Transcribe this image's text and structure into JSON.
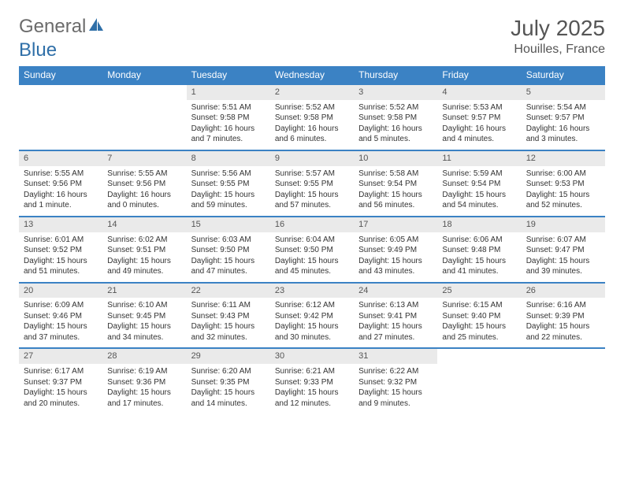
{
  "logo": {
    "text1": "General",
    "text2": "Blue",
    "color1": "#6b6b6b",
    "color2": "#2f6fa8"
  },
  "title": "July 2025",
  "location": "Houilles, France",
  "header_bg": "#3b82c4",
  "daynum_bg": "#eaeaea",
  "border_color": "#3b82c4",
  "days": [
    "Sunday",
    "Monday",
    "Tuesday",
    "Wednesday",
    "Thursday",
    "Friday",
    "Saturday"
  ],
  "weeks": [
    [
      null,
      null,
      {
        "n": "1",
        "sr": "5:51 AM",
        "ss": "9:58 PM",
        "dl": "16 hours and 7 minutes."
      },
      {
        "n": "2",
        "sr": "5:52 AM",
        "ss": "9:58 PM",
        "dl": "16 hours and 6 minutes."
      },
      {
        "n": "3",
        "sr": "5:52 AM",
        "ss": "9:58 PM",
        "dl": "16 hours and 5 minutes."
      },
      {
        "n": "4",
        "sr": "5:53 AM",
        "ss": "9:57 PM",
        "dl": "16 hours and 4 minutes."
      },
      {
        "n": "5",
        "sr": "5:54 AM",
        "ss": "9:57 PM",
        "dl": "16 hours and 3 minutes."
      }
    ],
    [
      {
        "n": "6",
        "sr": "5:55 AM",
        "ss": "9:56 PM",
        "dl": "16 hours and 1 minute."
      },
      {
        "n": "7",
        "sr": "5:55 AM",
        "ss": "9:56 PM",
        "dl": "16 hours and 0 minutes."
      },
      {
        "n": "8",
        "sr": "5:56 AM",
        "ss": "9:55 PM",
        "dl": "15 hours and 59 minutes."
      },
      {
        "n": "9",
        "sr": "5:57 AM",
        "ss": "9:55 PM",
        "dl": "15 hours and 57 minutes."
      },
      {
        "n": "10",
        "sr": "5:58 AM",
        "ss": "9:54 PM",
        "dl": "15 hours and 56 minutes."
      },
      {
        "n": "11",
        "sr": "5:59 AM",
        "ss": "9:54 PM",
        "dl": "15 hours and 54 minutes."
      },
      {
        "n": "12",
        "sr": "6:00 AM",
        "ss": "9:53 PM",
        "dl": "15 hours and 52 minutes."
      }
    ],
    [
      {
        "n": "13",
        "sr": "6:01 AM",
        "ss": "9:52 PM",
        "dl": "15 hours and 51 minutes."
      },
      {
        "n": "14",
        "sr": "6:02 AM",
        "ss": "9:51 PM",
        "dl": "15 hours and 49 minutes."
      },
      {
        "n": "15",
        "sr": "6:03 AM",
        "ss": "9:50 PM",
        "dl": "15 hours and 47 minutes."
      },
      {
        "n": "16",
        "sr": "6:04 AM",
        "ss": "9:50 PM",
        "dl": "15 hours and 45 minutes."
      },
      {
        "n": "17",
        "sr": "6:05 AM",
        "ss": "9:49 PM",
        "dl": "15 hours and 43 minutes."
      },
      {
        "n": "18",
        "sr": "6:06 AM",
        "ss": "9:48 PM",
        "dl": "15 hours and 41 minutes."
      },
      {
        "n": "19",
        "sr": "6:07 AM",
        "ss": "9:47 PM",
        "dl": "15 hours and 39 minutes."
      }
    ],
    [
      {
        "n": "20",
        "sr": "6:09 AM",
        "ss": "9:46 PM",
        "dl": "15 hours and 37 minutes."
      },
      {
        "n": "21",
        "sr": "6:10 AM",
        "ss": "9:45 PM",
        "dl": "15 hours and 34 minutes."
      },
      {
        "n": "22",
        "sr": "6:11 AM",
        "ss": "9:43 PM",
        "dl": "15 hours and 32 minutes."
      },
      {
        "n": "23",
        "sr": "6:12 AM",
        "ss": "9:42 PM",
        "dl": "15 hours and 30 minutes."
      },
      {
        "n": "24",
        "sr": "6:13 AM",
        "ss": "9:41 PM",
        "dl": "15 hours and 27 minutes."
      },
      {
        "n": "25",
        "sr": "6:15 AM",
        "ss": "9:40 PM",
        "dl": "15 hours and 25 minutes."
      },
      {
        "n": "26",
        "sr": "6:16 AM",
        "ss": "9:39 PM",
        "dl": "15 hours and 22 minutes."
      }
    ],
    [
      {
        "n": "27",
        "sr": "6:17 AM",
        "ss": "9:37 PM",
        "dl": "15 hours and 20 minutes."
      },
      {
        "n": "28",
        "sr": "6:19 AM",
        "ss": "9:36 PM",
        "dl": "15 hours and 17 minutes."
      },
      {
        "n": "29",
        "sr": "6:20 AM",
        "ss": "9:35 PM",
        "dl": "15 hours and 14 minutes."
      },
      {
        "n": "30",
        "sr": "6:21 AM",
        "ss": "9:33 PM",
        "dl": "15 hours and 12 minutes."
      },
      {
        "n": "31",
        "sr": "6:22 AM",
        "ss": "9:32 PM",
        "dl": "15 hours and 9 minutes."
      },
      null,
      null
    ]
  ],
  "labels": {
    "sunrise": "Sunrise:",
    "sunset": "Sunset:",
    "daylight": "Daylight:"
  }
}
